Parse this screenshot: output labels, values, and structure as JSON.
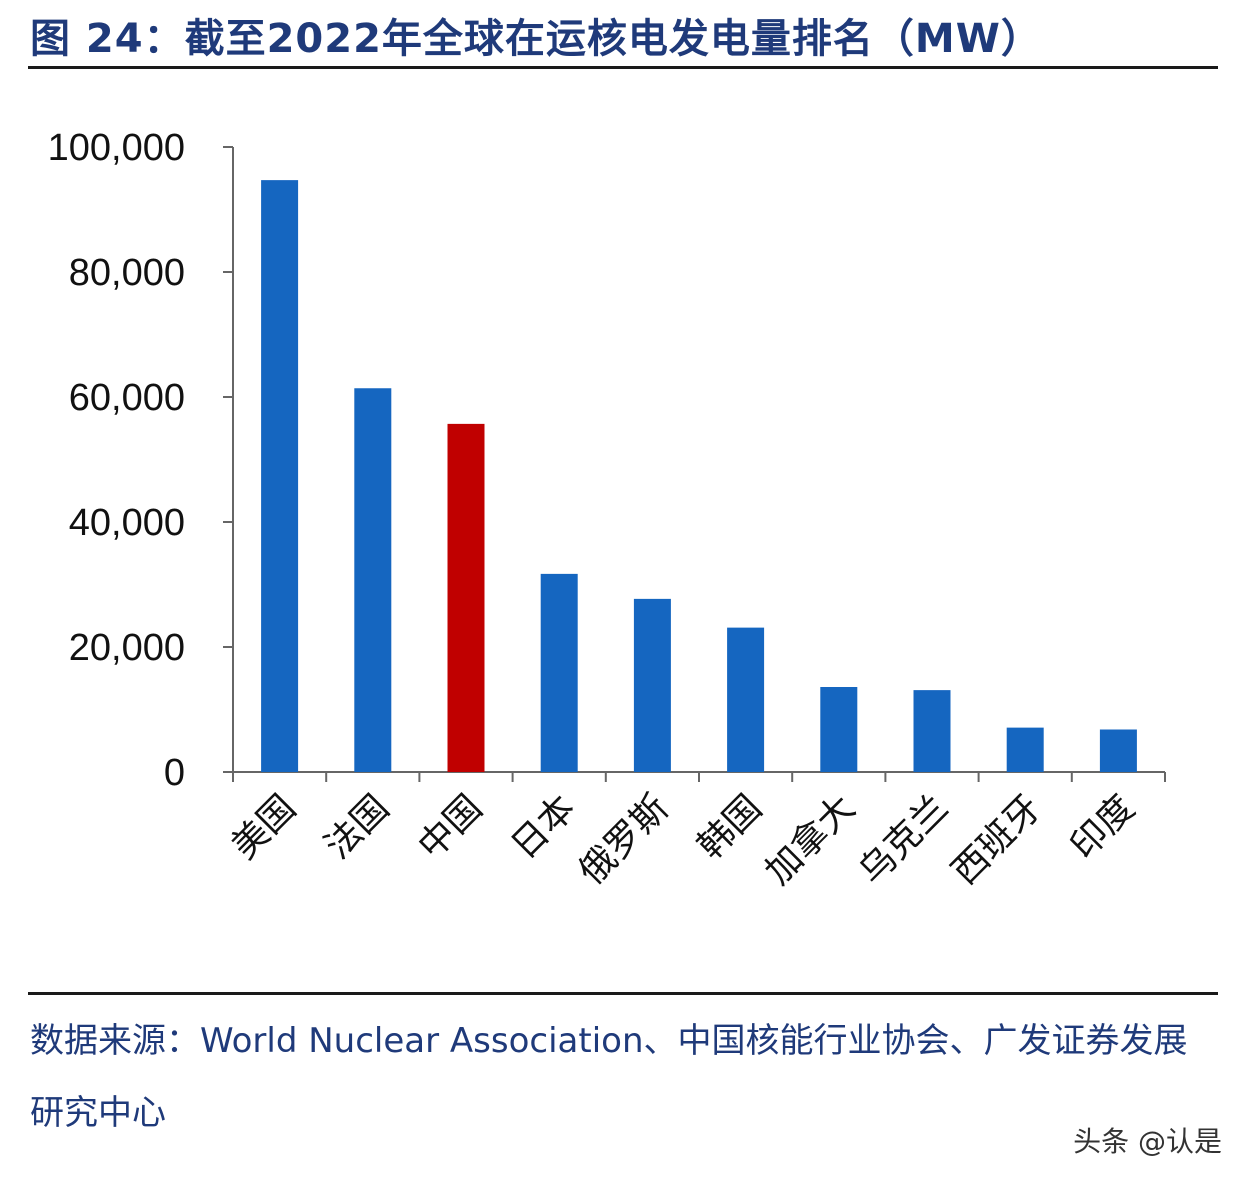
{
  "title": "图 24：截至2022年全球在运核电发电量排名（MW）",
  "chart_data": {
    "type": "bar",
    "categories": [
      "美国",
      "法国",
      "中国",
      "日本",
      "俄罗斯",
      "韩国",
      "加拿大",
      "乌克兰",
      "西班牙",
      "印度"
    ],
    "values": [
      94700,
      61400,
      55700,
      31700,
      27700,
      23100,
      13600,
      13100,
      7100,
      6800
    ],
    "ylim": [
      0,
      100000
    ],
    "yticks": [
      0,
      20000,
      40000,
      60000,
      80000,
      100000
    ],
    "ytick_labels": [
      "0",
      "20,000",
      "40,000",
      "60,000",
      "80,000",
      "100,000"
    ],
    "bar_color": "#1566c0",
    "highlight_color": "#c00000",
    "highlight_category": "中国",
    "grid": false,
    "legend": "none"
  },
  "source": "数据来源：World Nuclear Association、中国核能行业协会、广发证券发展研究中心",
  "watermark": "头条 @认是"
}
